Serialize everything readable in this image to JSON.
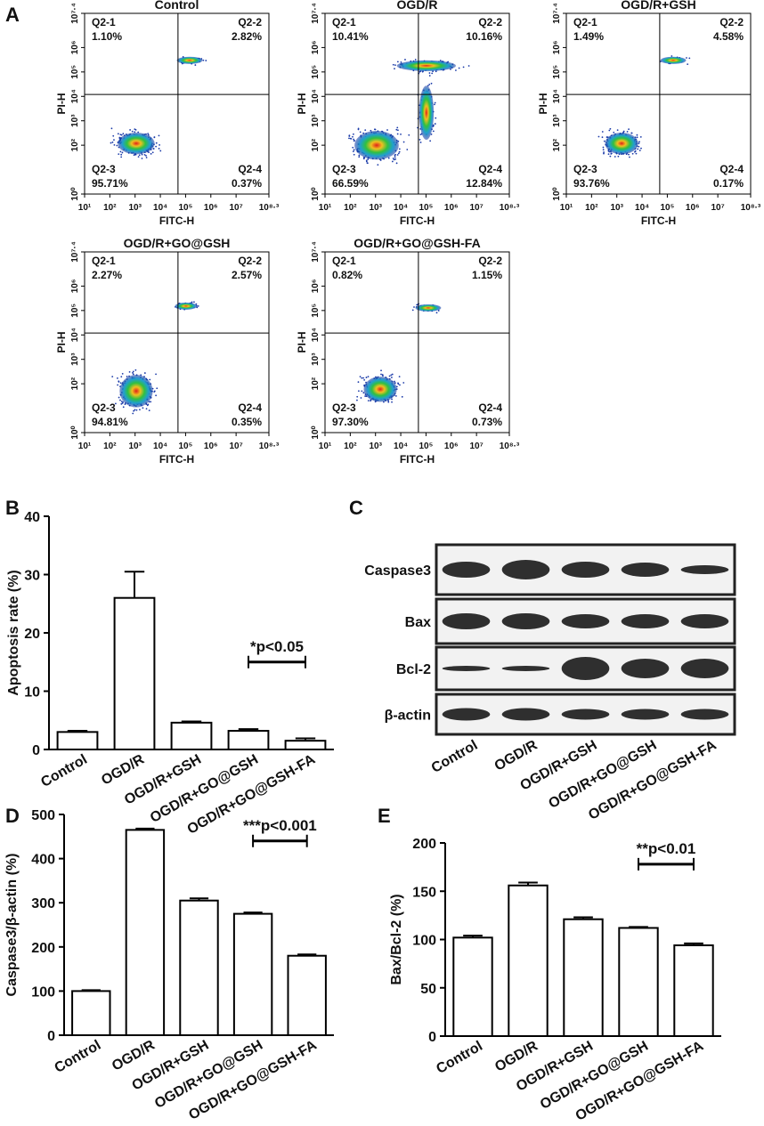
{
  "panel_labels": [
    "A",
    "B",
    "C",
    "D",
    "E"
  ],
  "chart_data": [
    {
      "type": "flow",
      "title": "Control",
      "xlabel": "FITC-H",
      "ylabel": "PI-H",
      "xscale": "log",
      "yscale": "log",
      "xlim": [
        10,
        199526231
      ],
      "ylim": [
        1,
        25118864
      ],
      "xticks": [
        {
          "value": 10,
          "label": "10¹"
        },
        {
          "value": 100,
          "label": "10²"
        },
        {
          "value": 1000,
          "label": "10³"
        },
        {
          "value": 10000,
          "label": "10⁴"
        },
        {
          "value": 100000,
          "label": "10⁵"
        },
        {
          "value": 1000000,
          "label": "10⁶"
        },
        {
          "value": 10000000,
          "label": "10⁷"
        },
        {
          "value": 199526231,
          "label": "10⁸·³"
        }
      ],
      "yticks": [
        {
          "value": 1,
          "label": "10⁰"
        },
        {
          "value": 100,
          "label": "10²"
        },
        {
          "value": 1000,
          "label": "10³"
        },
        {
          "value": 10000,
          "label": "10⁴"
        },
        {
          "value": 100000,
          "label": "10⁵"
        },
        {
          "value": 1000000,
          "label": "10⁶"
        },
        {
          "value": 25118864,
          "label": "10⁷·⁴"
        }
      ],
      "gates": {
        "x": 50000,
        "y": 12000
      },
      "quadrants": [
        {
          "name": "Q2-1",
          "label": "1.10%"
        },
        {
          "name": "Q2-2",
          "label": "2.82%"
        },
        {
          "name": "Q2-3",
          "label": "95.71%"
        },
        {
          "name": "Q2-4",
          "label": "0.37%"
        }
      ]
    },
    {
      "type": "flow",
      "title": "OGD/R",
      "xlabel": "FITC-H",
      "ylabel": "PI-H",
      "xscale": "log",
      "yscale": "log",
      "xlim": [
        10,
        199526231
      ],
      "ylim": [
        1,
        25118864
      ],
      "xticks": [
        {
          "value": 10,
          "label": "10¹"
        },
        {
          "value": 100,
          "label": "10²"
        },
        {
          "value": 1000,
          "label": "10³"
        },
        {
          "value": 10000,
          "label": "10⁴"
        },
        {
          "value": 100000,
          "label": "10⁵"
        },
        {
          "value": 1000000,
          "label": "10⁶"
        },
        {
          "value": 10000000,
          "label": "10⁷"
        },
        {
          "value": 199526231,
          "label": "10⁸·³"
        }
      ],
      "yticks": [
        {
          "value": 1,
          "label": "10⁰"
        },
        {
          "value": 100,
          "label": "10²"
        },
        {
          "value": 1000,
          "label": "10³"
        },
        {
          "value": 10000,
          "label": "10⁴"
        },
        {
          "value": 100000,
          "label": "10⁵"
        },
        {
          "value": 1000000,
          "label": "10⁶"
        },
        {
          "value": 25118864,
          "label": "10⁷·⁴"
        }
      ],
      "gates": {
        "x": 50000,
        "y": 12000
      },
      "quadrants": [
        {
          "name": "Q2-1",
          "label": "10.41%"
        },
        {
          "name": "Q2-2",
          "label": "10.16%"
        },
        {
          "name": "Q2-3",
          "label": "66.59%"
        },
        {
          "name": "Q2-4",
          "label": "12.84%"
        }
      ]
    },
    {
      "type": "flow",
      "title": "OGD/R+GSH",
      "xlabel": "FITC-H",
      "ylabel": "PI-H",
      "xscale": "log",
      "yscale": "log",
      "xlim": [
        10,
        199526231
      ],
      "ylim": [
        1,
        25118864
      ],
      "xticks": [
        {
          "value": 10,
          "label": "10¹"
        },
        {
          "value": 100,
          "label": "10²"
        },
        {
          "value": 1000,
          "label": "10³"
        },
        {
          "value": 10000,
          "label": "10⁴"
        },
        {
          "value": 100000,
          "label": "10⁵"
        },
        {
          "value": 1000000,
          "label": "10⁶"
        },
        {
          "value": 10000000,
          "label": "10⁷"
        },
        {
          "value": 199526231,
          "label": "10⁸·³"
        }
      ],
      "yticks": [
        {
          "value": 1,
          "label": "10⁰"
        },
        {
          "value": 100,
          "label": "10²"
        },
        {
          "value": 1000,
          "label": "10³"
        },
        {
          "value": 10000,
          "label": "10⁴"
        },
        {
          "value": 100000,
          "label": "10⁵"
        },
        {
          "value": 1000000,
          "label": "10⁶"
        },
        {
          "value": 25118864,
          "label": "10⁷·⁴"
        }
      ],
      "gates": {
        "x": 50000,
        "y": 12000
      },
      "quadrants": [
        {
          "name": "Q2-1",
          "label": "1.49%"
        },
        {
          "name": "Q2-2",
          "label": "4.58%"
        },
        {
          "name": "Q2-3",
          "label": "93.76%"
        },
        {
          "name": "Q2-4",
          "label": "0.17%"
        }
      ]
    },
    {
      "type": "flow",
      "title": "OGD/R+GO@GSH",
      "xlabel": "FITC-H",
      "ylabel": "PI-H",
      "xscale": "log",
      "yscale": "log",
      "xlim": [
        10,
        199526231
      ],
      "ylim": [
        1,
        25118864
      ],
      "xticks": [
        {
          "value": 10,
          "label": "10¹"
        },
        {
          "value": 100,
          "label": "10²"
        },
        {
          "value": 1000,
          "label": "10³"
        },
        {
          "value": 10000,
          "label": "10⁴"
        },
        {
          "value": 100000,
          "label": "10⁵"
        },
        {
          "value": 1000000,
          "label": "10⁶"
        },
        {
          "value": 10000000,
          "label": "10⁷"
        },
        {
          "value": 199526231,
          "label": "10⁸·³"
        }
      ],
      "yticks": [
        {
          "value": 1,
          "label": "10⁰"
        },
        {
          "value": 100,
          "label": "10²"
        },
        {
          "value": 1000,
          "label": "10³"
        },
        {
          "value": 10000,
          "label": "10⁴"
        },
        {
          "value": 100000,
          "label": "10⁵"
        },
        {
          "value": 1000000,
          "label": "10⁶"
        },
        {
          "value": 25118864,
          "label": "10⁷·⁴"
        }
      ],
      "gates": {
        "x": 50000,
        "y": 12000
      },
      "quadrants": [
        {
          "name": "Q2-1",
          "label": "2.27%"
        },
        {
          "name": "Q2-2",
          "label": "2.57%"
        },
        {
          "name": "Q2-3",
          "label": "94.81%"
        },
        {
          "name": "Q2-4",
          "label": "0.35%"
        }
      ]
    },
    {
      "type": "flow",
      "title": "OGD/R+GO@GSH-FA",
      "xlabel": "FITC-H",
      "ylabel": "PI-H",
      "xscale": "log",
      "yscale": "log",
      "xlim": [
        10,
        199526231
      ],
      "ylim": [
        1,
        25118864
      ],
      "xticks": [
        {
          "value": 10,
          "label": "10¹"
        },
        {
          "value": 100,
          "label": "10²"
        },
        {
          "value": 1000,
          "label": "10³"
        },
        {
          "value": 10000,
          "label": "10⁴"
        },
        {
          "value": 100000,
          "label": "10⁵"
        },
        {
          "value": 1000000,
          "label": "10⁶"
        },
        {
          "value": 10000000,
          "label": "10⁷"
        },
        {
          "value": 199526231,
          "label": "10⁸·³"
        }
      ],
      "yticks": [
        {
          "value": 1,
          "label": "10⁰"
        },
        {
          "value": 100,
          "label": "10²"
        },
        {
          "value": 1000,
          "label": "10³"
        },
        {
          "value": 10000,
          "label": "10⁴"
        },
        {
          "value": 100000,
          "label": "10⁵"
        },
        {
          "value": 1000000,
          "label": "10⁶"
        },
        {
          "value": 25118864,
          "label": "10⁷·⁴"
        }
      ],
      "gates": {
        "x": 50000,
        "y": 12000
      },
      "quadrants": [
        {
          "name": "Q2-1",
          "label": "0.82%"
        },
        {
          "name": "Q2-2",
          "label": "1.15%"
        },
        {
          "name": "Q2-3",
          "label": "97.30%"
        },
        {
          "name": "Q2-4",
          "label": "0.73%"
        }
      ]
    },
    {
      "type": "bar",
      "ylabel": "Apoptosis rate (%)",
      "categories": [
        "Control",
        "OGD/R",
        "OGD/R+GSH",
        "OGD/R+GO@GSH",
        "OGD/R+GO@GSH-FA"
      ],
      "values": [
        3,
        26,
        4.6,
        3.2,
        1.5
      ],
      "errors": [
        0.2,
        4.5,
        0.2,
        0.3,
        0.4
      ],
      "ylim": [
        0,
        40
      ],
      "yticks": [
        0,
        10,
        20,
        30,
        40
      ],
      "annotation": "*p<0.05",
      "bracket": {
        "from": 3,
        "to": 4,
        "y": 15
      }
    },
    {
      "type": "blot",
      "rows": [
        "Caspase3",
        "Bax",
        "Bcl-2",
        "β-actin"
      ],
      "categories": [
        "Control",
        "OGD/R",
        "OGD/R+GSH",
        "OGD/R+GO@GSH",
        "OGD/R+GO@GSH-FA"
      ]
    },
    {
      "type": "bar",
      "ylabel": "Caspase3/β-actin (%)",
      "categories": [
        "Control",
        "OGD/R",
        "OGD/R+GSH",
        "OGD/R+GO@GSH",
        "OGD/R+GO@GSH-FA"
      ],
      "values": [
        100,
        465,
        305,
        275,
        180
      ],
      "errors": [
        2,
        3,
        5,
        3,
        3
      ],
      "ylim": [
        0,
        500
      ],
      "yticks": [
        0,
        100,
        200,
        300,
        400,
        500
      ],
      "annotation": "***p<0.001",
      "bracket": {
        "from": 3,
        "to": 4,
        "y": 440
      }
    },
    {
      "type": "bar",
      "ylabel": "Bax/Bcl-2 (%)",
      "categories": [
        "Control",
        "OGD/R",
        "OGD/R+GSH",
        "OGD/R+GO@GSH",
        "OGD/R+GO@GSH-FA"
      ],
      "values": [
        102,
        156,
        121,
        112,
        94
      ],
      "errors": [
        2,
        3,
        2,
        1,
        2
      ],
      "ylim": [
        0,
        200
      ],
      "yticks": [
        0,
        50,
        100,
        150,
        200
      ],
      "annotation": "**p<0.01",
      "bracket": {
        "from": 3,
        "to": 4,
        "y": 178
      }
    }
  ]
}
